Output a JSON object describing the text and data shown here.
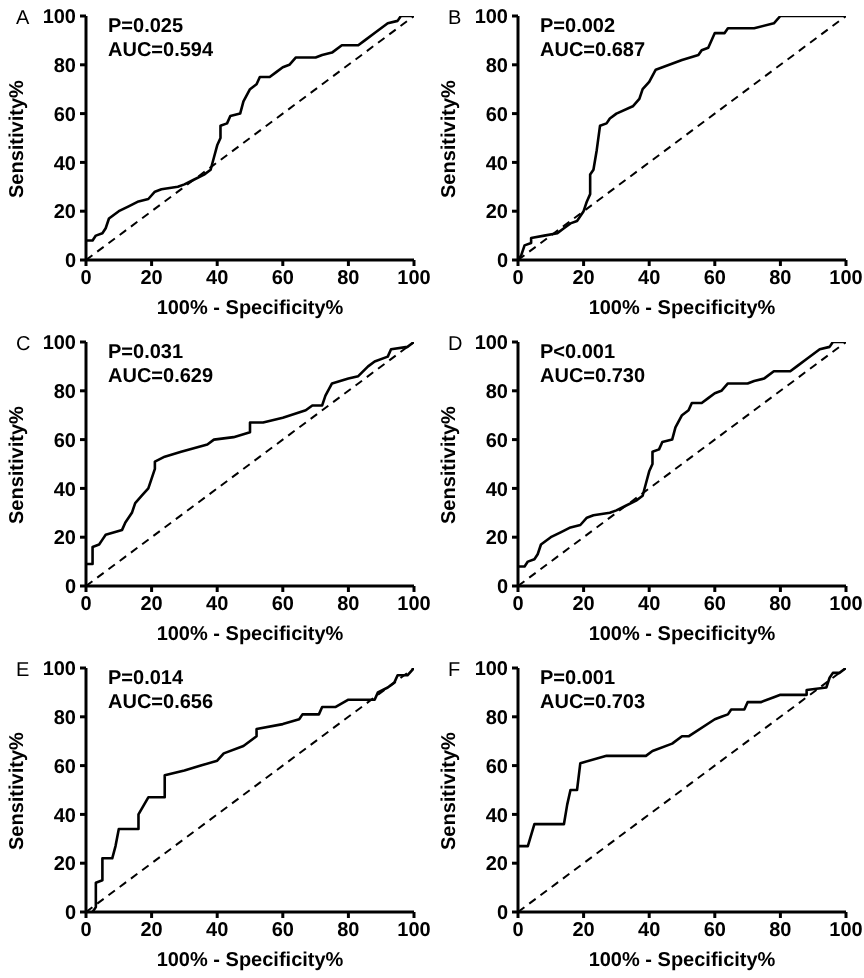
{
  "chart_data": [
    {
      "type": "line",
      "title": "A",
      "xlabel": "100% - Specificity%",
      "ylabel": "Sensitivity%",
      "annotations": [
        "P=0.025",
        "AUC=0.594"
      ],
      "xlim": [
        0,
        100
      ],
      "ylim": [
        0,
        100
      ],
      "xticks": [
        0,
        20,
        40,
        60,
        80,
        100
      ],
      "yticks": [
        0,
        20,
        40,
        60,
        80,
        100
      ],
      "series": [
        {
          "color": "#000000",
          "x": [
            0,
            2,
            3,
            5,
            6,
            7,
            10,
            13,
            16,
            19,
            21,
            23,
            28,
            30,
            33,
            36,
            38,
            39,
            40,
            41,
            41,
            43,
            44,
            47,
            48,
            50,
            52,
            53,
            56,
            58,
            60,
            62,
            64,
            70,
            72,
            75,
            78,
            83,
            85,
            88,
            92,
            95,
            96,
            100
          ],
          "values": [
            8,
            8,
            10,
            11,
            13,
            17,
            20,
            22,
            24,
            25,
            28,
            29,
            30,
            31,
            33,
            35,
            37,
            42,
            47,
            50,
            55,
            56,
            59,
            60,
            65,
            70,
            72,
            75,
            75,
            77,
            79,
            80,
            83,
            83,
            84,
            85,
            88,
            88,
            90,
            93,
            97,
            98,
            100,
            100
          ]
        },
        {
          "color": "#000000",
          "line_style": "dashed",
          "x": [
            0,
            100
          ],
          "values": [
            0,
            100
          ]
        }
      ]
    },
    {
      "type": "line",
      "title": "B",
      "xlabel": "100% - Specificity%",
      "ylabel": "Sensitivity%",
      "annotations": [
        "P=0.002",
        "AUC=0.687"
      ],
      "xlim": [
        0,
        100
      ],
      "ylim": [
        0,
        100
      ],
      "xticks": [
        0,
        20,
        40,
        60,
        80,
        100
      ],
      "yticks": [
        0,
        20,
        40,
        60,
        80,
        100
      ],
      "series": [
        {
          "color": "#000000",
          "x": [
            0,
            1,
            2,
            4,
            4,
            8,
            12,
            14,
            16,
            18,
            20,
            21,
            22,
            22,
            23,
            24,
            25,
            27,
            28,
            30,
            35,
            37,
            38,
            40,
            42,
            50,
            55,
            56,
            58,
            60,
            63,
            64,
            72,
            78,
            80,
            100
          ],
          "values": [
            0,
            2,
            6,
            7,
            9,
            10,
            11,
            13,
            15,
            16,
            20,
            24,
            27,
            35,
            37,
            45,
            55,
            56,
            58,
            60,
            63,
            66,
            70,
            73,
            78,
            82,
            84,
            86,
            87,
            93,
            93,
            95,
            95,
            97,
            100,
            100
          ]
        },
        {
          "color": "#000000",
          "line_style": "dashed",
          "x": [
            0,
            100
          ],
          "values": [
            0,
            100
          ]
        }
      ]
    },
    {
      "type": "line",
      "title": "C",
      "xlabel": "100% - Specificity%",
      "ylabel": "Sensitivity%",
      "annotations": [
        "P=0.031",
        "AUC=0.629"
      ],
      "xlim": [
        0,
        100
      ],
      "ylim": [
        0,
        100
      ],
      "xticks": [
        0,
        20,
        40,
        60,
        80,
        100
      ],
      "yticks": [
        0,
        20,
        40,
        60,
        80,
        100
      ],
      "series": [
        {
          "color": "#000000",
          "x": [
            0,
            2,
            2,
            4,
            5,
            6,
            11,
            12,
            14,
            15,
            17,
            19,
            20,
            21,
            21,
            24,
            29,
            37,
            39,
            45,
            50,
            50,
            54,
            60,
            67,
            69,
            72,
            73,
            75,
            80,
            83,
            86,
            88,
            92,
            93,
            98,
            100
          ],
          "values": [
            9,
            9,
            16,
            17,
            19,
            21,
            23,
            26,
            30,
            34,
            37,
            40,
            44,
            48,
            51,
            53,
            55,
            58,
            60,
            61,
            63,
            67,
            67,
            69,
            72,
            74,
            74,
            78,
            83,
            85,
            86,
            90,
            92,
            94,
            97,
            98,
            100
          ]
        },
        {
          "color": "#000000",
          "line_style": "dashed",
          "x": [
            0,
            100
          ],
          "values": [
            0,
            100
          ]
        }
      ]
    },
    {
      "type": "line",
      "title": "D",
      "xlabel": "100% - Specificity%",
      "ylabel": "Sensitivity%",
      "annotations": [
        "P<0.001",
        "AUC=0.730"
      ],
      "xlim": [
        0,
        100
      ],
      "ylim": [
        0,
        100
      ],
      "xticks": [
        0,
        20,
        40,
        60,
        80,
        100
      ],
      "yticks": [
        0,
        20,
        40,
        60,
        80,
        100
      ],
      "series": [
        {
          "color": "#000000",
          "x": [
            0,
            2,
            3,
            5,
            6,
            7,
            10,
            13,
            16,
            19,
            21,
            23,
            28,
            30,
            33,
            36,
            38,
            39,
            40,
            41,
            41,
            43,
            44,
            47,
            48,
            50,
            52,
            53,
            56,
            58,
            60,
            62,
            64,
            70,
            72,
            75,
            78,
            83,
            85,
            88,
            92,
            95,
            96,
            100
          ],
          "values": [
            8,
            8,
            10,
            11,
            13,
            17,
            20,
            22,
            24,
            25,
            28,
            29,
            30,
            31,
            33,
            35,
            37,
            42,
            47,
            50,
            55,
            56,
            59,
            60,
            65,
            70,
            72,
            75,
            75,
            77,
            79,
            80,
            83,
            83,
            84,
            85,
            88,
            88,
            90,
            93,
            97,
            98,
            100,
            100
          ]
        },
        {
          "color": "#000000",
          "line_style": "dashed",
          "x": [
            0,
            100
          ],
          "values": [
            0,
            100
          ]
        }
      ]
    },
    {
      "type": "line",
      "title": "E",
      "xlabel": "100% - Specificity%",
      "ylabel": "Sensitivity%",
      "annotations": [
        "P=0.014",
        "AUC=0.656"
      ],
      "xlim": [
        0,
        100
      ],
      "ylim": [
        0,
        100
      ],
      "xticks": [
        0,
        20,
        40,
        60,
        80,
        100
      ],
      "yticks": [
        0,
        20,
        40,
        60,
        80,
        100
      ],
      "series": [
        {
          "color": "#000000",
          "x": [
            2,
            3,
            3,
            5,
            5,
            8,
            9,
            10,
            16,
            16,
            19,
            24,
            24,
            30,
            35,
            40,
            42,
            48,
            52,
            52,
            60,
            65,
            66,
            71,
            72,
            76,
            80,
            88,
            89,
            92,
            94,
            95,
            98,
            100
          ],
          "values": [
            0,
            2,
            12,
            13,
            22,
            22,
            27,
            34,
            34,
            40,
            47,
            47,
            56,
            58,
            60,
            62,
            65,
            68,
            72,
            75,
            77,
            79,
            81,
            81,
            84,
            84,
            87,
            87,
            90,
            92,
            94,
            97,
            97,
            100
          ]
        },
        {
          "color": "#000000",
          "line_style": "dashed",
          "x": [
            0,
            100
          ],
          "values": [
            0,
            100
          ]
        }
      ]
    },
    {
      "type": "line",
      "title": "F",
      "xlabel": "100% - Specificity%",
      "ylabel": "Sensitivity%",
      "annotations": [
        "P=0.001",
        "AUC=0.703"
      ],
      "xlim": [
        0,
        100
      ],
      "ylim": [
        0,
        100
      ],
      "xticks": [
        0,
        20,
        40,
        60,
        80,
        100
      ],
      "yticks": [
        0,
        20,
        40,
        60,
        80,
        100
      ],
      "series": [
        {
          "color": "#000000",
          "x": [
            0,
            3,
            5,
            14,
            15,
            16,
            18,
            19,
            27,
            39,
            41,
            47,
            50,
            52,
            60,
            62,
            64,
            65,
            69,
            70,
            74,
            78,
            80,
            88,
            88,
            94,
            95,
            96,
            98,
            100
          ],
          "values": [
            27,
            27,
            36,
            36,
            44,
            50,
            50,
            61,
            64,
            64,
            66,
            69,
            72,
            72,
            79,
            80,
            81,
            83,
            83,
            86,
            86,
            88,
            89,
            89,
            91,
            92,
            96,
            98,
            98,
            100
          ]
        },
        {
          "color": "#000000",
          "line_style": "dashed",
          "x": [
            0,
            100
          ],
          "values": [
            0,
            100
          ]
        }
      ]
    }
  ]
}
